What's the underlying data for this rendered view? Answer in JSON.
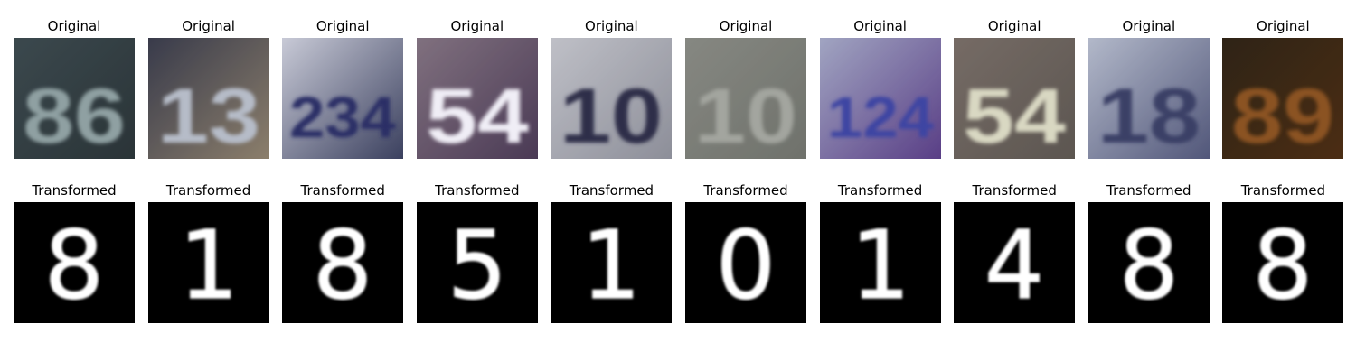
{
  "rows": [
    {
      "title": "Original",
      "tiles": [
        {
          "digits": "86",
          "bg": "#3f4c52",
          "fg": "#8fa0a2",
          "edge": "#2b3438"
        },
        {
          "digits": "13",
          "bg": "#2a2f45",
          "fg": "#b6bcc8",
          "edge": "#8c7f6c"
        },
        {
          "digits": "234",
          "bg": "#e1e2ec",
          "fg": "#2a2f66",
          "edge": "#3b405f"
        },
        {
          "digits": "54",
          "bg": "#8a7a86",
          "fg": "#f0eef6",
          "edge": "#4b3a55"
        },
        {
          "digits": "10",
          "bg": "#c8c9cf",
          "fg": "#2e2f4a",
          "edge": "#8d8f99"
        },
        {
          "digits": "10",
          "bg": "#8a8c86",
          "fg": "#a3a59f",
          "edge": "#6f726c"
        },
        {
          "digits": "124",
          "bg": "#aeb7cc",
          "fg": "#3c44a3",
          "edge": "#5a3f86"
        },
        {
          "digits": "54",
          "bg": "#7a6f69",
          "fg": "#d9d8c2",
          "edge": "#5c5651"
        },
        {
          "digits": "18",
          "bg": "#c4cad8",
          "fg": "#3b3f66",
          "edge": "#52577a"
        },
        {
          "digits": "89",
          "bg": "#2a2217",
          "fg": "#8b5322",
          "edge": "#4c2d14"
        }
      ]
    },
    {
      "title": "Transformed",
      "tiles": [
        {
          "digit": "8",
          "bg": "#000000",
          "fg": "#ffffff"
        },
        {
          "digit": "1",
          "bg": "#000000",
          "fg": "#ffffff"
        },
        {
          "digit": "8",
          "bg": "#000000",
          "fg": "#ffffff"
        },
        {
          "digit": "5",
          "bg": "#000000",
          "fg": "#ffffff"
        },
        {
          "digit": "1",
          "bg": "#000000",
          "fg": "#ffffff"
        },
        {
          "digit": "0",
          "bg": "#000000",
          "fg": "#ffffff"
        },
        {
          "digit": "1",
          "bg": "#000000",
          "fg": "#ffffff"
        },
        {
          "digit": "4",
          "bg": "#000000",
          "fg": "#ffffff"
        },
        {
          "digit": "8",
          "bg": "#000000",
          "fg": "#ffffff"
        },
        {
          "digit": "8",
          "bg": "#000000",
          "fg": "#ffffff"
        }
      ]
    }
  ]
}
